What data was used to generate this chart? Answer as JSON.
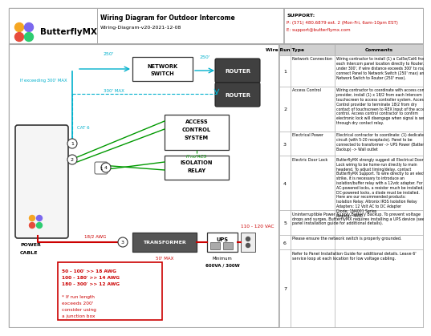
{
  "title": "Wiring Diagram for Outdoor Intercome",
  "subtitle": "Wiring-Diagram-v20-2021-12-08",
  "support_label": "SUPPORT:",
  "support_phone": "P: (571) 480.6879 ext. 2 (Mon-Fri, 6am-10pm EST)",
  "support_email": "E: support@butterflymx.com",
  "bg_color": "#ffffff",
  "cyan_color": "#00b0cc",
  "red_color": "#cc0000",
  "green_color": "#009900",
  "logo_orange": "#f5a623",
  "logo_purple": "#7b68ee",
  "logo_red": "#e74c3c",
  "logo_green": "#2ecc71",
  "table_rows": [
    {
      "num": "1",
      "type": "Network Connection",
      "comment": "Wiring contractor to install (1) a Cat5e/Cat6 from each Intercom panel location directly to Router. If under 300', if wire distance exceeds 300' to router, connect Panel to Network Switch (250' max) and Network Switch to Router (250' max)."
    },
    {
      "num": "2",
      "type": "Access Control",
      "comment": "Wiring contractor to coordinate with access control provider, install (1) x 18/2 from each Intercom touchscreen to access controller system. Access Control provider to terminate 18/2 from dry contact of touchscreen to REX Input of the access control. Access control contractor to confirm electronic lock will disengage when signal is sent through dry contact relay."
    },
    {
      "num": "3",
      "type": "Electrical Power",
      "comment": "Electrical contractor to coordinate: (1) dedicated circuit (with 5-20 receptacle). Panel to be connected to transformer -> UPS Power (Battery Backup) -> Wall outlet"
    },
    {
      "num": "4",
      "type": "Electric Door Lock",
      "comment": "ButterflyMX strongly suggest all Electrical Door Lock wiring to be home-run directly to main headend. To adjust timing/delay, contact ButterflyMX Support. To wire directly to an electric strike, it is necessary to introduce an isolation/buffer relay with a 12vdc adapter. For AC-powered locks, a resistor much be installed; for DC-powered locks, a diode must be installed.\nHere are our recommended products:\nIsolation Relay: Altronix IR5S Isolation Relay\nAdapters: 12 Volt AC to DC Adapter\nDiode: 1N4001 Series\nResistor: 4450"
    },
    {
      "num": "5",
      "type": "Uninterruptible Power Supply Battery Backup. To prevent voltage drops and surges, ButterflyMX requires installing a UPS device (see panel installation guide for additional details).",
      "comment": ""
    },
    {
      "num": "6",
      "type": "Please ensure the network switch is properly grounded.",
      "comment": ""
    },
    {
      "num": "7",
      "type": "Refer to Panel Installation Guide for additional details. Leave 6' service loop at each location for low voltage cabling.",
      "comment": ""
    }
  ]
}
